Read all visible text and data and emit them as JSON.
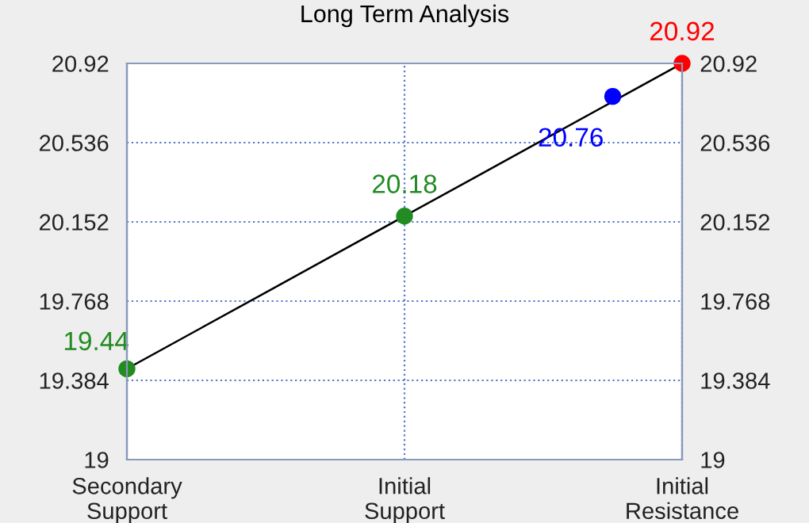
{
  "chart_data": {
    "type": "line",
    "title": "Long Term Analysis",
    "categories": [
      "Secondary\nSupport",
      null,
      null,
      null,
      "Initial\nSupport",
      null,
      null,
      null,
      "Initial\nResistance"
    ],
    "ylim": [
      19,
      20.92
    ],
    "yticks": [
      19,
      19.384,
      19.768,
      20.152,
      20.536,
      20.92
    ],
    "y2lim": [
      19,
      20.92
    ],
    "y2ticks": [
      19,
      19.384,
      19.768,
      20.152,
      20.536,
      20.92
    ],
    "grid": true,
    "series": [
      {
        "color": "#000000",
        "values": [
          19.44,
          19.625,
          19.81,
          19.995,
          20.18,
          20.365,
          20.55,
          20.735,
          20.92
        ]
      },
      {
        "type": "scatter",
        "values": [
          19.44,
          null,
          null,
          null,
          20.18,
          null,
          null,
          20.76,
          20.92
        ],
        "colors": [
          "#228b22",
          null,
          null,
          null,
          "#228b22",
          null,
          null,
          "#0000ff",
          "#ff0000"
        ],
        "data_labels": true
      }
    ]
  }
}
